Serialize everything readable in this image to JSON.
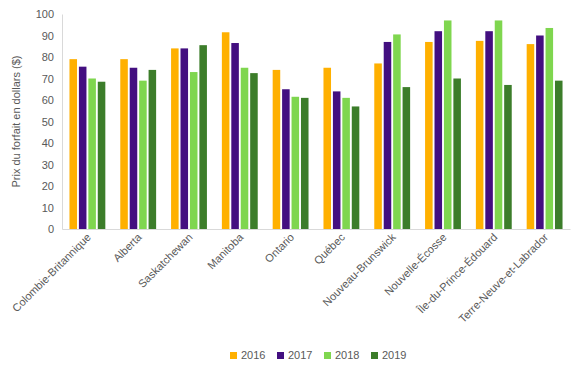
{
  "chart_data": {
    "type": "bar",
    "y_label": "Prix du forfait en dollars ($)",
    "categories": [
      "Colombie-Britannique",
      "Alberta",
      "Saskatchewan",
      "Manitoba",
      "Ontario",
      "Québec",
      "Nouveau-Brunswick",
      "Nouvelle-Écosse",
      "Île-du-Prince-Édouard",
      "Terre-Neuve-et-Labrador"
    ],
    "series": [
      {
        "name": "2016",
        "color": "#ffb000",
        "values": [
          79,
          79,
          84,
          91.5,
          74,
          75,
          77,
          87,
          87.5,
          86
        ]
      },
      {
        "name": "2017",
        "color": "#430f80",
        "values": [
          75.5,
          75,
          84,
          86.5,
          65,
          64,
          87,
          92,
          92,
          90
        ]
      },
      {
        "name": "2018",
        "color": "#7fd64f",
        "values": [
          70,
          69,
          73,
          75,
          61.5,
          61,
          90.5,
          97,
          97,
          93.5
        ]
      },
      {
        "name": "2019",
        "color": "#3c7d2a",
        "values": [
          68.5,
          74,
          85.5,
          72.5,
          61,
          57,
          66,
          70,
          67,
          69
        ]
      }
    ],
    "ylim": [
      0,
      100
    ],
    "yticks": [
      0,
      10,
      20,
      30,
      40,
      50,
      60,
      70,
      80,
      90,
      100
    ],
    "grid": false,
    "legend": "bottom"
  }
}
